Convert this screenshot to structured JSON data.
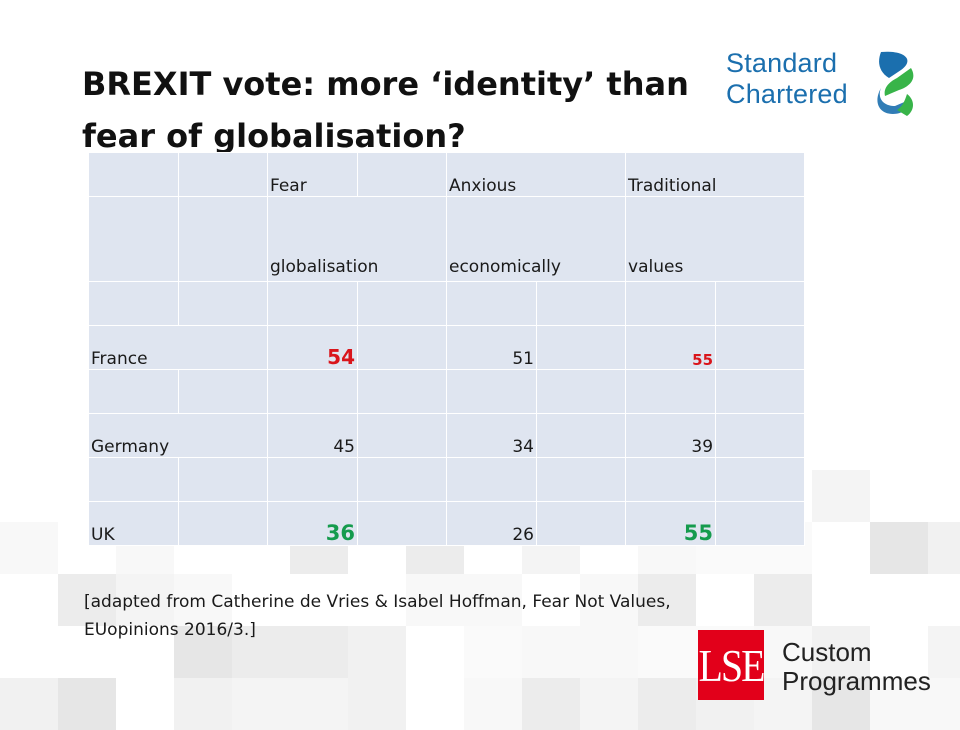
{
  "slide": {
    "title_line1": "BREXIT vote: more ‘identity’ than",
    "title_line2": "fear of globalisation?"
  },
  "logo_standard_chartered": {
    "line1": "Standard",
    "line2": "Chartered",
    "text_color": "#1b6fae",
    "mark_colors": [
      "#1b6fae",
      "#38b449"
    ]
  },
  "table": {
    "header_top": [
      "Fear",
      "Anxious",
      "Traditional"
    ],
    "header_bottom": [
      "globalisation",
      "economically",
      "values"
    ],
    "rows": [
      {
        "country": "France",
        "values": [
          "54",
          "51",
          "55"
        ]
      },
      {
        "country": "Germany",
        "values": [
          "45",
          "34",
          "39"
        ]
      },
      {
        "country": "UK",
        "values": [
          "36",
          "26",
          "55"
        ]
      }
    ],
    "highlight_red": "#d9151b",
    "highlight_green": "#159b4d",
    "cell_bg": "#dfe5f0"
  },
  "source": {
    "line1": "[adapted from Catherine de Vries & Isabel Hoffman, Fear Not Values,",
    "line2": "EUopinions 2016/3.]"
  },
  "logo_lse": {
    "box_text": "LSE",
    "line1": "Custom",
    "line2": "Programmes",
    "box_color": "#e2001a"
  }
}
